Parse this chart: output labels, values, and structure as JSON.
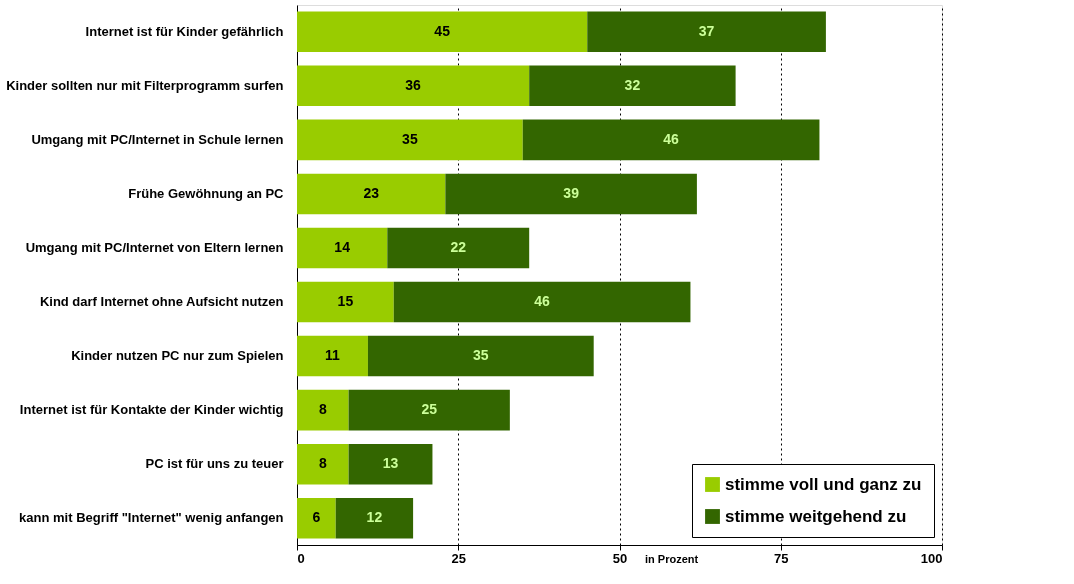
{
  "chart_data": {
    "type": "bar",
    "orientation": "horizontal",
    "stacked": true,
    "xlabel": "in Prozent",
    "categories": [
      "Internet ist für Kinder gefährlich",
      "Kinder sollten nur mit Filterprogramm surfen",
      "Umgang mit PC/Internet in Schule lernen",
      "Frühe Gewöhnung an PC",
      "Umgang mit PC/Internet von Eltern lernen",
      "Kind darf Internet ohne Aufsicht nutzen",
      "Kinder nutzen PC nur zum Spielen",
      "Internet ist für Kontakte der Kinder wichtig",
      "PC ist für uns zu teuer",
      "kann mit Begriff \"Internet\" wenig anfangen"
    ],
    "series": [
      {
        "name": "stimme voll und ganz zu",
        "color": "#99cc00",
        "values": [
          45,
          36,
          35,
          23,
          14,
          15,
          11,
          8,
          8,
          6
        ]
      },
      {
        "name": "stimme weitgehend zu",
        "color": "#336600",
        "values": [
          37,
          32,
          46,
          39,
          22,
          46,
          35,
          25,
          13,
          12
        ]
      }
    ],
    "xlim": [
      0,
      100
    ],
    "xticks": [
      0,
      25,
      50,
      75,
      100
    ],
    "grid": "x",
    "legend": "bottom right",
    "data_labels": true
  }
}
